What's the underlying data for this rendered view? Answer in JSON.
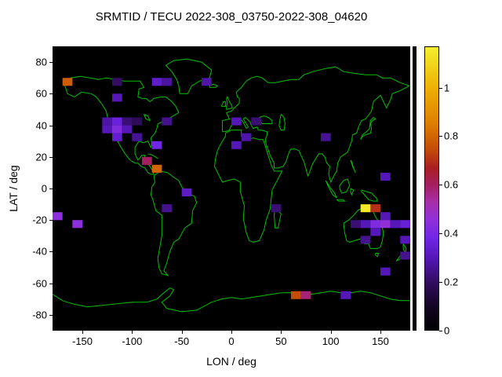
{
  "title": "SRMTID / TECU 2022-308_03750-2022-308_04620",
  "axes": {
    "xlabel": "LON / deg",
    "ylabel": "LAT / deg",
    "x_range": [
      -180,
      180
    ],
    "y_range": [
      -90,
      90
    ],
    "x_ticks": [
      -150,
      -100,
      -50,
      0,
      50,
      100,
      150
    ],
    "y_ticks": [
      80,
      60,
      40,
      20,
      0,
      -20,
      -40,
      -60,
      -80
    ]
  },
  "colorbar": {
    "ticks": [
      0,
      0.2,
      0.4,
      0.6,
      0.8,
      1
    ],
    "max": 1.17,
    "stops": [
      [
        0.0,
        "#000000"
      ],
      [
        0.1,
        "#150425"
      ],
      [
        0.2,
        "#330d62"
      ],
      [
        0.3,
        "#5517b8"
      ],
      [
        0.38,
        "#7026e6"
      ],
      [
        0.46,
        "#9130d8"
      ],
      [
        0.53,
        "#a82ea8"
      ],
      [
        0.6,
        "#a51e60"
      ],
      [
        0.67,
        "#a81f22"
      ],
      [
        0.75,
        "#c44e07"
      ],
      [
        0.85,
        "#dd7c02"
      ],
      [
        1.0,
        "#eeb004"
      ],
      [
        1.17,
        "#f4ef2e"
      ]
    ]
  },
  "colors": {
    "figure_bg": "#ffffff",
    "plot_bg": "#000000",
    "coast": "#00c000",
    "axis_text": "#000000"
  },
  "chart_data": {
    "type": "heatmap",
    "title": "SRMTID / TECU 2022-308_03750-2022-308_04620",
    "xlabel": "LON / deg",
    "ylabel": "LAT / deg",
    "xlim": [
      -180,
      180
    ],
    "ylim": [
      -90,
      90
    ],
    "value_unit": "TECU",
    "value_range": [
      0,
      1.17
    ],
    "cell_size_deg": {
      "lon": 10,
      "lat": 5
    },
    "cells_format": [
      "lon_center",
      "lat_center",
      "value"
    ],
    "cells": [
      [
        -165,
        67.5,
        0.78
      ],
      [
        -115,
        67.5,
        0.2
      ],
      [
        -75,
        67.5,
        0.33
      ],
      [
        -65,
        67.5,
        0.27
      ],
      [
        -25,
        67.5,
        0.28
      ],
      [
        -115,
        57.5,
        0.3
      ],
      [
        -125,
        42.5,
        0.28
      ],
      [
        -115,
        42.5,
        0.36
      ],
      [
        -105,
        42.5,
        0.22
      ],
      [
        -95,
        42.5,
        0.18
      ],
      [
        -65,
        42.5,
        0.25
      ],
      [
        -125,
        37.5,
        0.3
      ],
      [
        -115,
        37.5,
        0.42
      ],
      [
        -105,
        37.5,
        0.3
      ],
      [
        -115,
        32.5,
        0.34
      ],
      [
        -95,
        32.5,
        0.26
      ],
      [
        -75,
        27.5,
        0.38
      ],
      [
        -85,
        17.5,
        0.6
      ],
      [
        -75,
        12.5,
        0.8
      ],
      [
        -45,
        -2.5,
        0.32
      ],
      [
        -65,
        -12.5,
        0.25
      ],
      [
        -175,
        -17.5,
        0.45
      ],
      [
        -155,
        -22.5,
        0.45
      ],
      [
        5,
        42.5,
        0.3
      ],
      [
        25,
        42.5,
        0.22
      ],
      [
        15,
        32.5,
        0.28
      ],
      [
        5,
        27.5,
        0.3
      ],
      [
        95,
        32.5,
        0.26
      ],
      [
        155,
        7.5,
        0.3
      ],
      [
        135,
        -12.5,
        1.15
      ],
      [
        145,
        -12.5,
        0.7
      ],
      [
        155,
        -17.5,
        0.3
      ],
      [
        125,
        -22.5,
        0.22
      ],
      [
        135,
        -22.5,
        0.3
      ],
      [
        145,
        -22.5,
        0.42
      ],
      [
        155,
        -22.5,
        0.46
      ],
      [
        135,
        -32.5,
        0.25
      ],
      [
        145,
        -27.5,
        0.3
      ],
      [
        165,
        -22.5,
        0.3
      ],
      [
        175,
        -22.5,
        0.35
      ],
      [
        175,
        -32.5,
        0.3
      ],
      [
        175,
        -42.5,
        0.25
      ],
      [
        155,
        -52.5,
        0.3
      ],
      [
        45,
        -12.5,
        0.22
      ],
      [
        65,
        -67.5,
        0.75
      ],
      [
        75,
        -67.5,
        0.58
      ],
      [
        115,
        -67.5,
        0.3
      ]
    ]
  }
}
